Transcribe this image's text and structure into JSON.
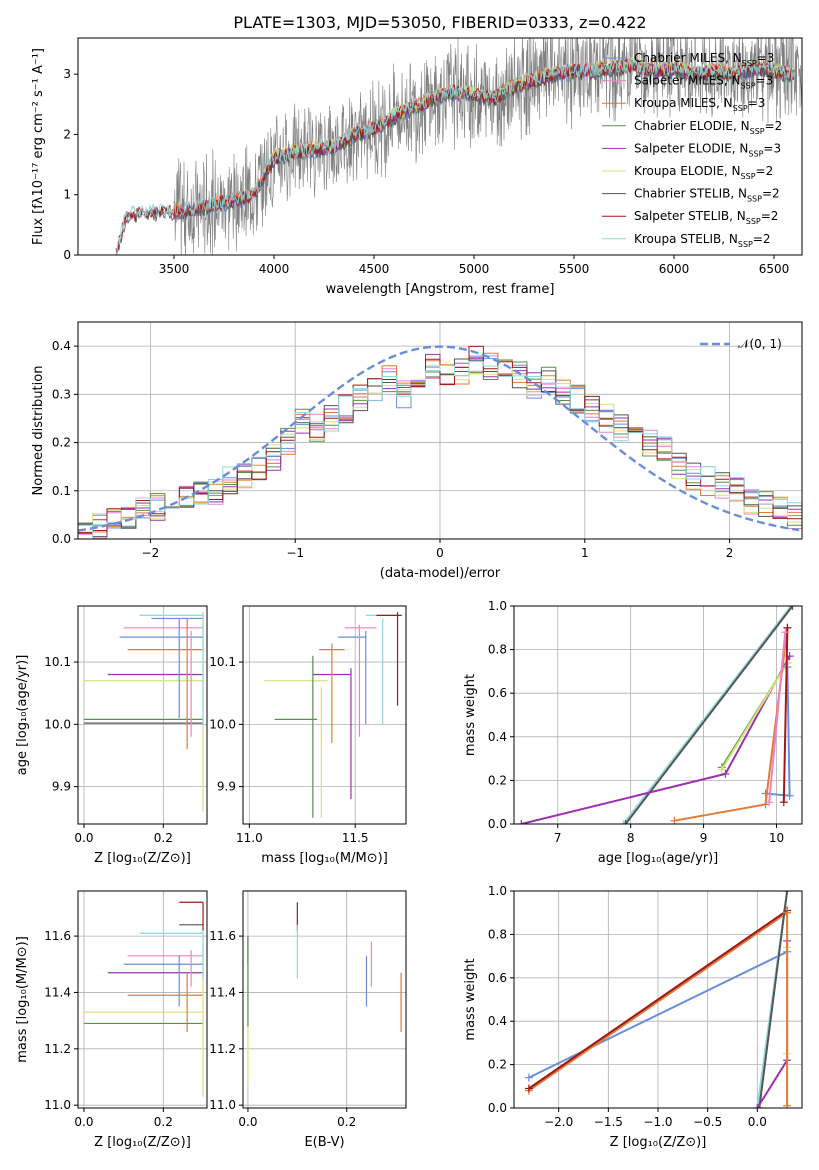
{
  "figure": {
    "title": "PLATE=1303, MJD=53050, FIBERID=0333, z=0.422"
  },
  "colors": {
    "chabrier_miles": "#6a8fd8",
    "salpeter_miles": "#ee82c8",
    "kroupa_miles": "#e07b39",
    "chabrier_elodie": "#5a8f4a",
    "salpeter_elodie": "#9b30b0",
    "kroupa_elodie": "#d6e27a",
    "chabrier_stelib": "#555555",
    "salpeter_stelib": "#a01818",
    "kroupa_stelib": "#8ed8dc",
    "data": "#7f7f7f",
    "normal": "#6a8fd8"
  },
  "chart_data": [
    {
      "id": "spectrum",
      "type": "line",
      "xlabel": "wavelength [Angstrom, rest frame]",
      "ylabel": "Flux [fλ10⁻¹⁷ erg cm⁻² s⁻¹ A⁻¹]",
      "xlim": [
        3020,
        6640
      ],
      "ylim": [
        0,
        3.6
      ],
      "xticks": [
        3500,
        4000,
        4500,
        5000,
        5500,
        6000,
        6500
      ],
      "yticks": [
        0,
        1,
        2,
        3
      ],
      "legend_position": "top-right",
      "series": [
        {
          "name": "Chabrier MILES, N_SSP=3",
          "color_key": "chabrier_miles"
        },
        {
          "name": "Salpeter MILES, N_SSP=3",
          "color_key": "salpeter_miles"
        },
        {
          "name": "Kroupa MILES, N_SSP=3",
          "color_key": "kroupa_miles"
        },
        {
          "name": "Chabrier ELODIE, N_SSP=2",
          "color_key": "chabrier_elodie"
        },
        {
          "name": "Salpeter ELODIE, N_SSP=3",
          "color_key": "salpeter_elodie"
        },
        {
          "name": "Kroupa ELODIE, N_SSP=2",
          "color_key": "kroupa_elodie"
        },
        {
          "name": "Chabrier STELIB, N_SSP=2",
          "color_key": "chabrier_stelib"
        },
        {
          "name": "Salpeter STELIB, N_SSP=2",
          "color_key": "salpeter_stelib"
        },
        {
          "name": "Kroupa STELIB, N_SSP=2",
          "color_key": "kroupa_stelib"
        }
      ],
      "continuum": {
        "x": [
          3210,
          3260,
          3400,
          3500,
          3600,
          3700,
          3800,
          3900,
          4000,
          4100,
          4200,
          4300,
          4400,
          4500,
          4600,
          4700,
          4800,
          4900,
          5000,
          5100,
          5200,
          5300,
          5400,
          5500,
          5600,
          5700,
          5800,
          5900,
          6000,
          6100,
          6200,
          6300,
          6400,
          6500,
          6600
        ],
        "y": [
          0.0,
          0.65,
          0.7,
          0.72,
          0.75,
          0.85,
          0.9,
          1.0,
          1.6,
          1.7,
          1.75,
          1.8,
          2.0,
          2.1,
          2.3,
          2.45,
          2.6,
          2.7,
          2.65,
          2.6,
          2.8,
          2.9,
          3.0,
          3.05,
          3.05,
          3.1,
          3.15,
          3.05,
          3.1,
          3.0,
          3.05,
          3.0,
          3.1,
          3.05,
          3.0
        ]
      }
    },
    {
      "id": "residuals",
      "type": "line",
      "xlabel": "(data-model)/error",
      "ylabel": "Normed distribution",
      "xlim": [
        -2.5,
        2.5
      ],
      "ylim": [
        0,
        0.45
      ],
      "xticks": [
        -2,
        -1,
        0,
        1,
        2
      ],
      "yticks": [
        0.0,
        0.1,
        0.2,
        0.3,
        0.4
      ],
      "normal_label": "𝒩(0, 1)",
      "histogram_bin_width": 0.1,
      "histogram_centers": [
        -2.45,
        -2.35,
        -2.25,
        -2.15,
        -2.05,
        -1.95,
        -1.85,
        -1.75,
        -1.65,
        -1.55,
        -1.45,
        -1.35,
        -1.25,
        -1.15,
        -1.05,
        -0.95,
        -0.85,
        -0.75,
        -0.65,
        -0.55,
        -0.45,
        -0.35,
        -0.25,
        -0.15,
        -0.05,
        0.05,
        0.15,
        0.25,
        0.35,
        0.45,
        0.55,
        0.65,
        0.75,
        0.85,
        0.95,
        1.05,
        1.15,
        1.25,
        1.35,
        1.45,
        1.55,
        1.65,
        1.75,
        1.85,
        1.95,
        2.05,
        2.15,
        2.25,
        2.35,
        2.45
      ],
      "histogram_values": [
        0.02,
        0.025,
        0.035,
        0.05,
        0.06,
        0.065,
        0.085,
        0.08,
        0.1,
        0.1,
        0.12,
        0.13,
        0.14,
        0.17,
        0.2,
        0.24,
        0.23,
        0.25,
        0.27,
        0.29,
        0.31,
        0.33,
        0.3,
        0.34,
        0.36,
        0.34,
        0.35,
        0.37,
        0.36,
        0.35,
        0.34,
        0.32,
        0.33,
        0.3,
        0.29,
        0.27,
        0.25,
        0.23,
        0.21,
        0.2,
        0.19,
        0.15,
        0.13,
        0.12,
        0.11,
        0.1,
        0.08,
        0.07,
        0.06,
        0.05
      ]
    },
    {
      "id": "age-vs-Z",
      "type": "scatter",
      "xlabel": "Z [log₁₀(Z/Z⊙)]",
      "ylabel": "age  [log₁₀(age/yr)]",
      "xlim": [
        -0.015,
        0.31
      ],
      "ylim": [
        9.84,
        10.19
      ],
      "xticks": [
        0.0,
        0.2
      ],
      "yticks": [
        9.9,
        10.0,
        10.1
      ],
      "hsegs": [
        [
          0.14,
          0.3,
          10.175,
          "kroupa_stelib"
        ],
        [
          0.17,
          0.3,
          10.17,
          "chabrier_miles"
        ],
        [
          0.1,
          0.3,
          10.155,
          "salpeter_miles"
        ],
        [
          0.09,
          0.3,
          10.14,
          "chabrier_miles"
        ],
        [
          0.11,
          0.3,
          10.12,
          "kroupa_miles"
        ],
        [
          0.06,
          0.3,
          10.08,
          "salpeter_elodie"
        ],
        [
          0.0,
          0.3,
          10.07,
          "kroupa_elodie"
        ],
        [
          0.0,
          0.3,
          10.008,
          "chabrier_elodie"
        ],
        [
          0.0,
          0.3,
          10.002,
          "chabrier_stelib"
        ]
      ],
      "vsegs": [
        [
          0.24,
          10.01,
          10.17,
          "chabrier_miles"
        ],
        [
          0.26,
          9.96,
          10.17,
          "kroupa_miles"
        ],
        [
          0.27,
          9.98,
          10.15,
          "salpeter_miles"
        ],
        [
          0.3,
          9.86,
          10.18,
          "kroupa_elodie"
        ],
        [
          0.3,
          10.0,
          10.18,
          "kroupa_stelib"
        ]
      ]
    },
    {
      "id": "age-vs-mass",
      "type": "scatter",
      "xlabel": "mass [log₁₀(M/M⊙)]",
      "ylabel": "",
      "xlim": [
        10.97,
        11.74
      ],
      "ylim": [
        9.84,
        10.19
      ],
      "xticks": [
        11.0,
        11.5
      ],
      "yticks": [
        9.9,
        10.0,
        10.1
      ],
      "hsegs": [
        [
          11.55,
          11.7,
          10.175,
          "kroupa_stelib"
        ],
        [
          11.6,
          11.72,
          10.175,
          "salpeter_stelib"
        ],
        [
          11.45,
          11.6,
          10.155,
          "salpeter_miles"
        ],
        [
          11.42,
          11.55,
          10.14,
          "chabrier_miles"
        ],
        [
          11.33,
          11.45,
          10.12,
          "kroupa_miles"
        ],
        [
          11.3,
          11.48,
          10.08,
          "salpeter_elodie"
        ],
        [
          11.07,
          11.37,
          10.07,
          "kroupa_elodie"
        ],
        [
          11.12,
          11.32,
          10.008,
          "chabrier_elodie"
        ]
      ],
      "vsegs": [
        [
          11.63,
          10.0,
          10.17,
          "kroupa_stelib"
        ],
        [
          11.7,
          10.03,
          10.18,
          "salpeter_stelib"
        ],
        [
          11.52,
          9.98,
          10.16,
          "salpeter_miles"
        ],
        [
          11.55,
          10.0,
          10.15,
          "chabrier_miles"
        ],
        [
          11.39,
          9.97,
          10.13,
          "kroupa_miles"
        ],
        [
          11.48,
          9.88,
          10.09,
          "salpeter_elodie"
        ],
        [
          11.34,
          9.85,
          10.06,
          "kroupa_elodie"
        ],
        [
          11.3,
          9.85,
          10.11,
          "chabrier_elodie"
        ]
      ]
    },
    {
      "id": "massweight-vs-age",
      "type": "line",
      "xlabel": "age  [log₁₀(age/yr)]",
      "ylabel": "mass weight",
      "xlim": [
        6.4,
        10.35
      ],
      "ylim": [
        0,
        1
      ],
      "xticks": [
        7,
        8,
        9,
        10
      ],
      "yticks": [
        0.0,
        0.2,
        0.4,
        0.6,
        0.8,
        1.0
      ],
      "lines": [
        {
          "color_key": "kroupa_stelib",
          "x": [
            7.9,
            10.2
          ],
          "y": [
            0.0,
            1.0
          ]
        },
        {
          "color_key": "chabrier_stelib",
          "x": [
            7.93,
            10.22
          ],
          "y": [
            0.0,
            1.0
          ]
        },
        {
          "color_key": "salpeter_elodie",
          "x": [
            6.5,
            9.3,
            10.18
          ],
          "y": [
            0.0,
            0.23,
            0.77
          ]
        },
        {
          "color_key": "chabrier_elodie",
          "x": [
            9.25,
            10.15
          ],
          "y": [
            0.26,
            0.74
          ]
        },
        {
          "color_key": "kroupa_elodie",
          "x": [
            9.25,
            10.15
          ],
          "y": [
            0.25,
            0.74
          ]
        },
        {
          "color_key": "chabrier_miles",
          "x": [
            9.85,
            10.18,
            10.15
          ],
          "y": [
            0.14,
            0.13,
            0.72
          ]
        },
        {
          "color_key": "kroupa_miles",
          "x": [
            8.6,
            9.85,
            10.15
          ],
          "y": [
            0.015,
            0.09,
            0.9
          ]
        },
        {
          "color_key": "salpeter_stelib",
          "x": [
            10.1,
            10.15
          ],
          "y": [
            0.1,
            0.9
          ]
        },
        {
          "color_key": "salpeter_miles",
          "x": [
            9.9,
            10.12
          ],
          "y": [
            0.1,
            0.88
          ]
        }
      ]
    },
    {
      "id": "mass-vs-Z",
      "type": "scatter",
      "xlabel": "Z [log₁₀(Z/Z⊙)]",
      "ylabel": "mass [log₁₀(M/M⊙)]",
      "xlim": [
        -0.015,
        0.31
      ],
      "ylim": [
        10.99,
        11.76
      ],
      "xticks": [
        0.0,
        0.2
      ],
      "yticks": [
        11.0,
        11.2,
        11.4,
        11.6
      ],
      "hsegs": [
        [
          0.24,
          0.3,
          11.72,
          "salpeter_stelib"
        ],
        [
          0.24,
          0.3,
          11.64,
          "chabrier_stelib"
        ],
        [
          0.14,
          0.3,
          11.61,
          "kroupa_stelib"
        ],
        [
          0.11,
          0.3,
          11.53,
          "salpeter_miles"
        ],
        [
          0.1,
          0.3,
          11.5,
          "chabrier_miles"
        ],
        [
          0.06,
          0.3,
          11.47,
          "salpeter_elodie"
        ],
        [
          0.11,
          0.3,
          11.39,
          "kroupa_miles"
        ],
        [
          0.0,
          0.3,
          11.33,
          "kroupa_elodie"
        ],
        [
          0.0,
          0.3,
          11.29,
          "chabrier_elodie"
        ]
      ],
      "vsegs": [
        [
          0.3,
          11.62,
          11.72,
          "salpeter_stelib"
        ],
        [
          0.24,
          11.35,
          11.53,
          "chabrier_miles"
        ],
        [
          0.26,
          11.26,
          11.47,
          "kroupa_miles"
        ],
        [
          0.27,
          11.42,
          11.55,
          "salpeter_miles"
        ],
        [
          0.3,
          11.03,
          11.6,
          "kroupa_elodie"
        ],
        [
          0.3,
          11.45,
          11.62,
          "kroupa_stelib"
        ]
      ]
    },
    {
      "id": "mass-vs-EBV",
      "type": "scatter",
      "xlabel": "E(B-V)",
      "ylabel": "",
      "xlim": [
        -0.01,
        0.32
      ],
      "ylim": [
        10.99,
        11.76
      ],
      "xticks": [
        0.0,
        0.2
      ],
      "yticks": [
        11.0,
        11.2,
        11.4,
        11.6
      ],
      "vsegs": [
        [
          0.0,
          11.5,
          11.6,
          "salpeter_elodie"
        ],
        [
          0.0,
          11.08,
          11.47,
          "kroupa_elodie"
        ],
        [
          0.0,
          11.28,
          11.6,
          "chabrier_elodie"
        ],
        [
          0.1,
          11.62,
          11.72,
          "salpeter_stelib"
        ],
        [
          0.1,
          11.45,
          11.64,
          "kroupa_stelib"
        ],
        [
          0.24,
          11.35,
          11.53,
          "chabrier_miles"
        ],
        [
          0.25,
          11.42,
          11.58,
          "salpeter_miles"
        ],
        [
          0.31,
          11.26,
          11.47,
          "kroupa_miles"
        ]
      ]
    },
    {
      "id": "massweight-vs-Z",
      "type": "line",
      "xlabel": "Z [log₁₀(Z/Z⊙)]",
      "ylabel": "mass weight",
      "xlim": [
        -2.45,
        0.45
      ],
      "ylim": [
        0,
        1
      ],
      "xticks": [
        -2.0,
        -1.5,
        -1.0,
        -0.5,
        0.0
      ],
      "yticks": [
        0.0,
        0.2,
        0.4,
        0.6,
        0.8,
        1.0
      ],
      "lines": [
        {
          "color_key": "chabrier_miles",
          "x": [
            -2.3,
            0.3
          ],
          "y": [
            0.14,
            0.72
          ]
        },
        {
          "color_key": "kroupa_miles",
          "x": [
            -2.3,
            0.3
          ],
          "y": [
            0.08,
            0.9
          ]
        },
        {
          "color_key": "salpeter_stelib",
          "x": [
            -2.3,
            0.3
          ],
          "y": [
            0.09,
            0.91
          ]
        },
        {
          "color_key": "kroupa_stelib",
          "x": [
            0.0,
            0.3
          ],
          "y": [
            0.0,
            1.0
          ]
        },
        {
          "color_key": "chabrier_stelib",
          "x": [
            0.02,
            0.3
          ],
          "y": [
            0.0,
            1.0
          ]
        },
        {
          "color_key": "salpeter_elodie",
          "x": [
            0.0,
            0.3,
            0.3
          ],
          "y": [
            0.0,
            0.22,
            0.77
          ]
        },
        {
          "color_key": "kroupa_elodie",
          "x": [
            0.3,
            0.3
          ],
          "y": [
            0.25,
            0.74
          ]
        },
        {
          "color_key": "kroupa_miles",
          "x": [
            0.3,
            0.3
          ],
          "y": [
            0.01,
            0.9
          ]
        }
      ]
    }
  ]
}
